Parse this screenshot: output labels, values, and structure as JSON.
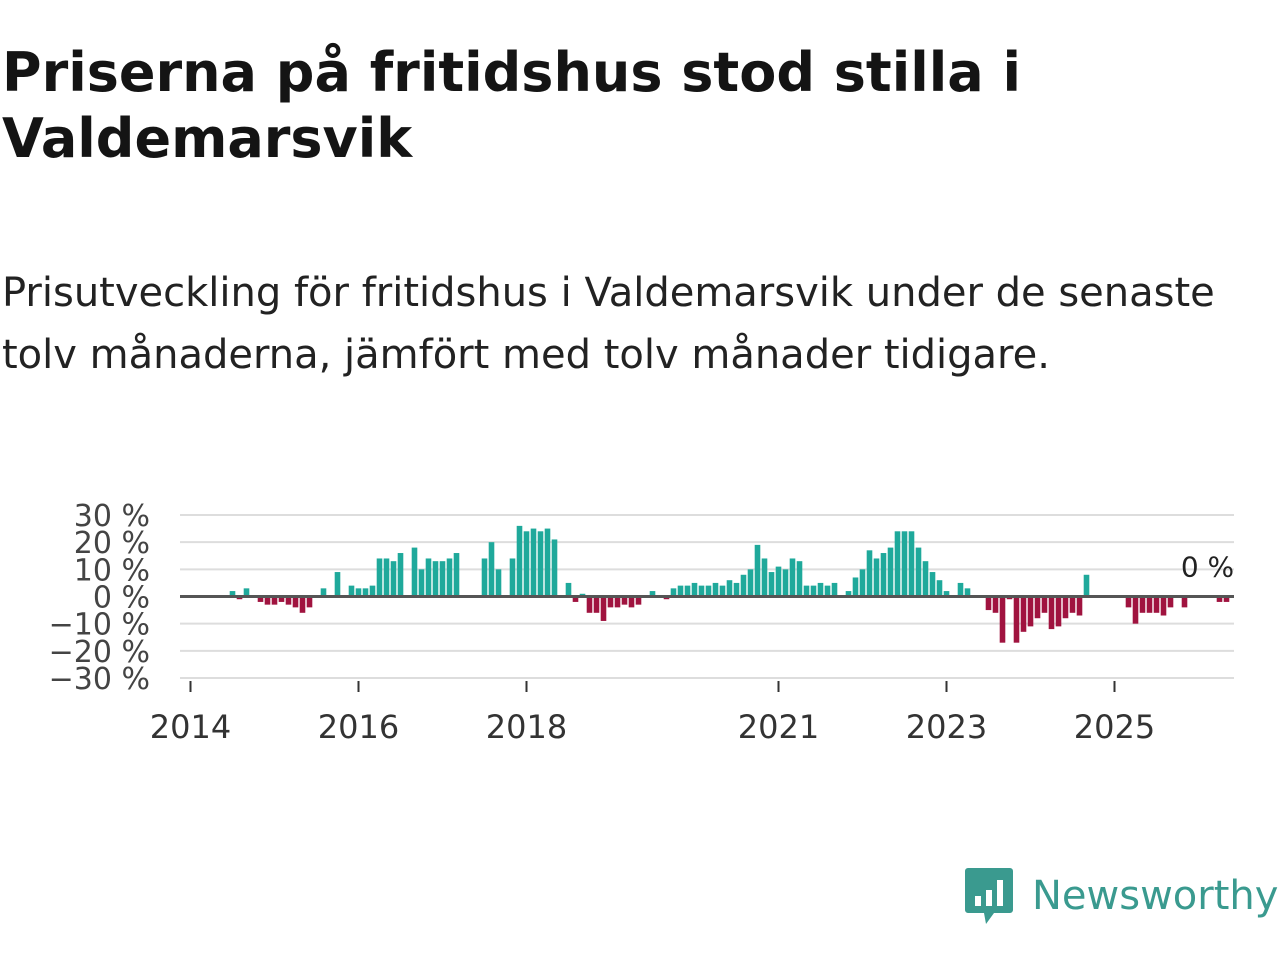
{
  "title": "Priserna på fritidshus stod stilla i Valdemarsvik",
  "subtitle": "Prisutveckling för fritidshus i Valdemarsvik under de senaste tolv månaderna, jämfört med tolv månader tidigare.",
  "brand": {
    "name": "Newsworthy",
    "color": "#3a9a8f"
  },
  "colors": {
    "positive": "#1fa99b",
    "negative": "#a0133f",
    "grid": "#dddddd",
    "zero": "#555555"
  },
  "chart_data": {
    "type": "bar",
    "title": "",
    "xlabel": "",
    "ylabel": "",
    "ylim": [
      -30,
      30
    ],
    "ytick_values": [
      30,
      20,
      10,
      0,
      -10,
      -20,
      -30
    ],
    "ytick_labels": [
      "30 %",
      "20 %",
      "10 %",
      "0 %",
      "−10 %",
      "−20 %",
      "−30 %"
    ],
    "xtick_years": [
      2014,
      2016,
      2018,
      2021,
      2023,
      2025
    ],
    "xtick_labels": [
      "2014",
      "2016",
      "2018",
      "2021",
      "2023",
      "2025"
    ],
    "x_start": "2014-01",
    "annotation": {
      "text": "0 %",
      "index": 145,
      "value": 0
    },
    "series": [
      {
        "name": "Prisutveckling",
        "values": [
          0,
          0,
          0,
          0,
          0,
          0,
          2,
          -1,
          3,
          0,
          -2,
          -3,
          -3,
          -2,
          -3,
          -4,
          -6,
          -4,
          0,
          3,
          0,
          9,
          0,
          4,
          3,
          3,
          4,
          14,
          14,
          13,
          16,
          0,
          18,
          10,
          14,
          13,
          13,
          14,
          16,
          0,
          0,
          0,
          14,
          20,
          10,
          0,
          14,
          26,
          24,
          25,
          24,
          25,
          21,
          0,
          5,
          -2,
          1,
          -6,
          -6,
          -9,
          -4,
          -4,
          -3,
          -4,
          -3,
          0,
          2,
          0,
          -1,
          3,
          4,
          4,
          5,
          4,
          4,
          5,
          4,
          6,
          5,
          8,
          10,
          19,
          14,
          9,
          11,
          10,
          14,
          13,
          4,
          4,
          5,
          4,
          5,
          0,
          2,
          7,
          10,
          17,
          14,
          16,
          18,
          24,
          24,
          24,
          18,
          13,
          9,
          6,
          2,
          0,
          5,
          3,
          0,
          0,
          -5,
          -6,
          -17,
          -1,
          -17,
          -13,
          -11,
          -8,
          -6,
          -12,
          -11,
          -8,
          -6,
          -7,
          8,
          0,
          0,
          0,
          0,
          0,
          -4,
          -10,
          -6,
          -6,
          -6,
          -7,
          -4,
          0,
          -4,
          0,
          0,
          0,
          0,
          -2,
          -2,
          0,
          0,
          0,
          0,
          0
        ]
      }
    ]
  }
}
